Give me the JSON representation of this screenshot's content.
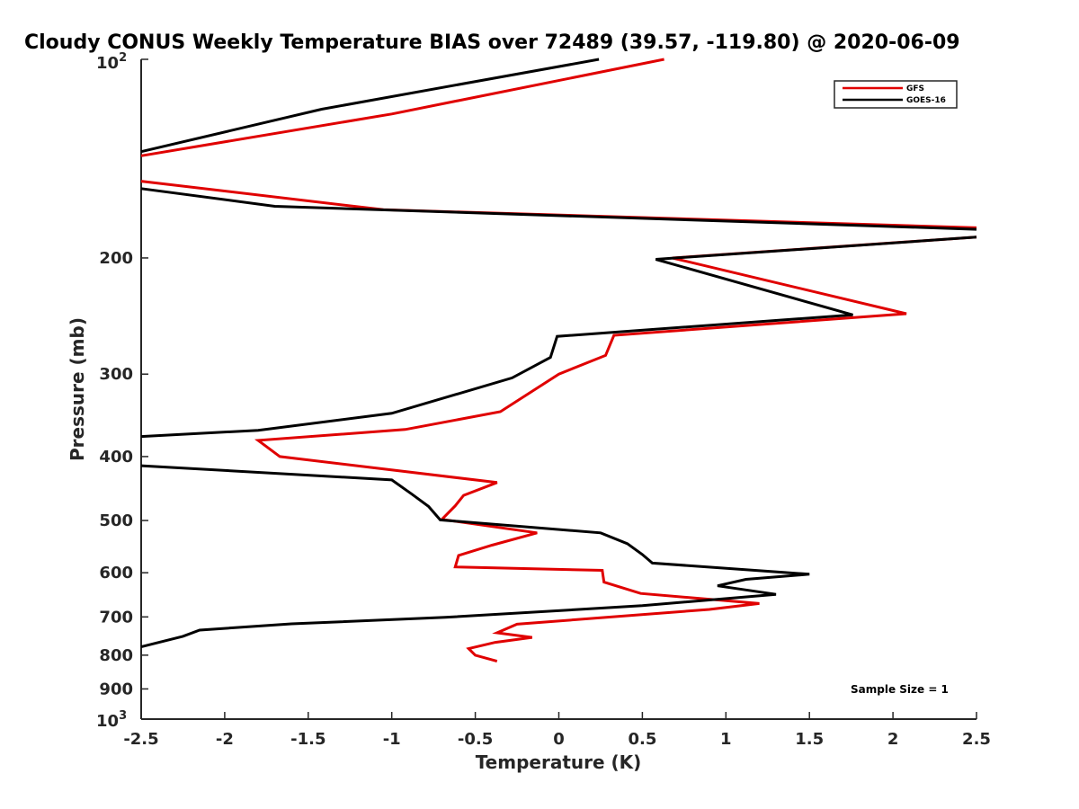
{
  "chart_data": {
    "type": "line",
    "title": "Cloudy CONUS Weekly Temperature BIAS over 72489 (39.57, -119.80) @ 2020-06-09",
    "xlabel": "Temperature (K)",
    "ylabel": "Pressure (mb)",
    "xlim": [
      -2.5,
      2.5
    ],
    "ylim": [
      100,
      1000
    ],
    "yscale": "log",
    "yreversed": true,
    "grid": false,
    "legend_position": "top-right",
    "x_ticks": [
      -2.5,
      -2,
      -1.5,
      -1,
      -0.5,
      0,
      0.5,
      1,
      1.5,
      2,
      2.5
    ],
    "x_tick_labels": [
      "-2.5",
      "-2",
      "-1.5",
      "-1",
      "-0.5",
      "0",
      "0.5",
      "1",
      "1.5",
      "2",
      "2.5"
    ],
    "y_ticks": [
      200,
      300,
      400,
      500,
      600,
      700,
      800,
      900
    ],
    "y_tick_labels": [
      "200",
      "300",
      "400",
      "500",
      "600",
      "700",
      "800",
      "900"
    ],
    "y_tick_top": {
      "base": "10",
      "exp": "2"
    },
    "y_tick_bottom": {
      "base": "10",
      "exp": "3"
    },
    "annotation": "Sample Size = 1",
    "series": [
      {
        "name": "GFS",
        "color": "#e00000",
        "x": [
          0.63,
          -1.0,
          -2.5,
          null,
          -2.5,
          -1.05,
          2.5,
          null,
          2.5,
          0.68,
          2.08,
          0.33,
          0.28,
          0.0,
          -0.35,
          -0.92,
          -1.8,
          -1.67,
          -0.37,
          -0.57,
          -0.62,
          -0.7,
          -0.13,
          -0.4,
          -0.6,
          -0.62,
          0.26,
          0.27,
          0.49,
          1.2,
          0.9,
          -0.25,
          -0.37,
          -0.16,
          -0.38,
          -0.54,
          -0.5,
          -0.37
        ],
        "y": [
          100,
          121,
          140,
          null,
          153,
          169,
          180,
          null,
          186,
          200,
          243,
          262,
          281,
          300,
          342,
          364,
          378,
          400,
          438,
          458,
          475,
          498,
          522,
          545,
          565,
          588,
          595,
          620,
          645,
          668,
          682,
          718,
          740,
          752,
          765,
          782,
          800,
          817
        ]
      },
      {
        "name": "GOES-16",
        "color": "#000000",
        "x": [
          0.24,
          -1.42,
          -2.5,
          null,
          -2.5,
          -1.7,
          2.5,
          null,
          2.5,
          0.58,
          1.76,
          -0.01,
          -0.05,
          -0.28,
          -1.0,
          -1.8,
          -2.5,
          null,
          -2.5,
          -1.0,
          -0.88,
          -0.78,
          -0.71,
          0.25,
          0.41,
          0.5,
          0.56,
          1.5,
          1.12,
          0.95,
          1.3,
          0.5,
          -0.68,
          -1.6,
          -2.15,
          -2.25,
          -2.5
        ],
        "y": [
          100,
          119,
          138,
          null,
          157,
          167,
          181,
          null,
          186,
          201,
          244,
          263,
          283,
          304,
          344,
          365,
          373,
          null,
          413,
          434,
          456,
          476,
          499,
          522,
          542,
          563,
          580,
          603,
          614,
          628,
          647,
          673,
          701,
          717,
          733,
          749,
          777
        ]
      }
    ]
  }
}
